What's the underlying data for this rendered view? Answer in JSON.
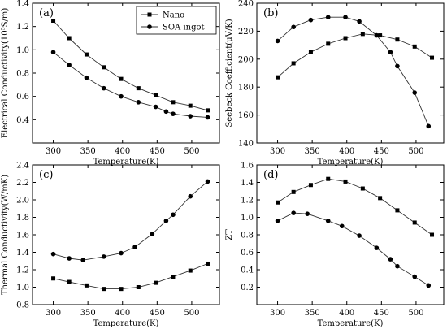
{
  "chart_data": [
    {
      "panel": "(a)",
      "type": "line",
      "xlabel": "Temperature(K)",
      "ylabel": "Electrical Conductivity(10⁵S/m)",
      "xlim": [
        270,
        540
      ],
      "ylim": [
        0.2,
        1.4
      ],
      "xticks": [
        300,
        350,
        400,
        450,
        500
      ],
      "yticks": [
        0.4,
        0.6,
        0.8,
        1.0,
        1.2,
        1.4
      ],
      "ytick_decimals": 1,
      "legend": {
        "position": "top-right",
        "entries": [
          "Nano",
          "SOA ingot"
        ]
      },
      "series": [
        {
          "name": "Nano",
          "marker": "square",
          "x": [
            300,
            323,
            348,
            373,
            398,
            423,
            448,
            473,
            498,
            523
          ],
          "y": [
            1.25,
            1.1,
            0.96,
            0.85,
            0.75,
            0.67,
            0.61,
            0.55,
            0.52,
            0.48
          ]
        },
        {
          "name": "SOA ingot",
          "marker": "circle",
          "x": [
            300,
            323,
            348,
            373,
            398,
            423,
            448,
            463,
            473,
            498,
            523
          ],
          "y": [
            0.98,
            0.87,
            0.76,
            0.67,
            0.6,
            0.55,
            0.51,
            0.47,
            0.45,
            0.43,
            0.42
          ]
        }
      ]
    },
    {
      "panel": "(b)",
      "type": "line",
      "xlabel": "Temperature(K)",
      "ylabel": "Seebeck Coefficient(μV/K)",
      "xlim": [
        270,
        540
      ],
      "ylim": [
        140,
        240
      ],
      "xticks": [
        300,
        350,
        400,
        450,
        500
      ],
      "yticks": [
        140,
        160,
        180,
        200,
        220,
        240
      ],
      "ytick_decimals": 0,
      "series": [
        {
          "name": "Nano",
          "marker": "square",
          "x": [
            300,
            323,
            348,
            373,
            398,
            423,
            448,
            473,
            498,
            523
          ],
          "y": [
            187,
            197,
            205,
            211,
            215,
            218,
            217,
            214,
            209,
            201
          ]
        },
        {
          "name": "SOA ingot",
          "marker": "circle",
          "x": [
            300,
            323,
            348,
            373,
            398,
            418,
            443,
            463,
            473,
            498,
            518
          ],
          "y": [
            213,
            223,
            228,
            230,
            230,
            227,
            217,
            205,
            195,
            176,
            152
          ]
        }
      ]
    },
    {
      "panel": "(c)",
      "type": "line",
      "xlabel": "Temperature(K)",
      "ylabel": "Thermal Conductivity(W/mK)",
      "xlim": [
        270,
        540
      ],
      "ylim": [
        0.8,
        2.4
      ],
      "xticks": [
        300,
        350,
        400,
        450,
        500
      ],
      "yticks": [
        0.8,
        1.0,
        1.2,
        1.4,
        1.6,
        1.8,
        2.0,
        2.2,
        2.4
      ],
      "ytick_decimals": 1,
      "series": [
        {
          "name": "Nano",
          "marker": "square",
          "x": [
            300,
            323,
            348,
            373,
            398,
            423,
            448,
            473,
            498,
            523
          ],
          "y": [
            1.1,
            1.06,
            1.02,
            0.98,
            0.98,
            1.0,
            1.05,
            1.12,
            1.19,
            1.27
          ]
        },
        {
          "name": "SOA ingot",
          "marker": "circle",
          "x": [
            300,
            323,
            343,
            373,
            398,
            418,
            443,
            463,
            473,
            498,
            523
          ],
          "y": [
            1.38,
            1.33,
            1.31,
            1.35,
            1.39,
            1.46,
            1.61,
            1.76,
            1.83,
            2.04,
            2.21
          ]
        }
      ]
    },
    {
      "panel": "(d)",
      "type": "line",
      "xlabel": "Temperature(K)",
      "ylabel": "ZT",
      "xlim": [
        270,
        540
      ],
      "ylim": [
        0.0,
        1.6
      ],
      "xticks": [
        300,
        350,
        400,
        450,
        500
      ],
      "yticks": [
        0.2,
        0.4,
        0.6,
        0.8,
        1.0,
        1.2,
        1.4,
        1.6
      ],
      "ytick_decimals": 1,
      "series": [
        {
          "name": "Nano",
          "marker": "square",
          "x": [
            300,
            323,
            348,
            373,
            398,
            423,
            448,
            473,
            498,
            523
          ],
          "y": [
            1.17,
            1.29,
            1.37,
            1.44,
            1.41,
            1.33,
            1.22,
            1.08,
            0.94,
            0.8
          ]
        },
        {
          "name": "SOA ingot",
          "marker": "circle",
          "x": [
            300,
            323,
            343,
            373,
            393,
            418,
            443,
            463,
            473,
            498,
            518
          ],
          "y": [
            0.96,
            1.05,
            1.04,
            0.96,
            0.9,
            0.79,
            0.65,
            0.52,
            0.44,
            0.32,
            0.22
          ]
        }
      ]
    }
  ]
}
